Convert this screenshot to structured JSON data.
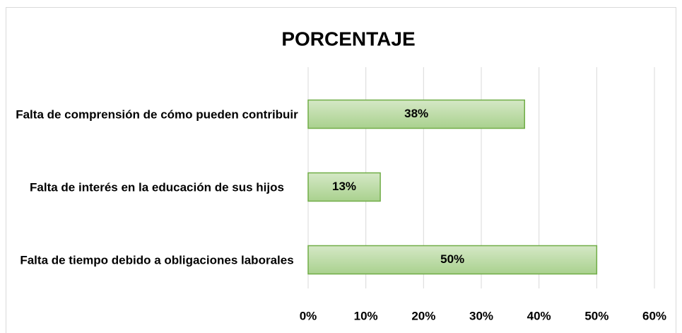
{
  "chart_data": {
    "type": "bar",
    "orientation": "horizontal",
    "title": "PORCENTAJE",
    "categories": [
      "Falta de comprensión de cómo pueden contribuir",
      "Falta de interés en la educación de sus hijos",
      "Falta de tiempo debido a obligaciones laborales"
    ],
    "values": [
      37.5,
      12.5,
      50
    ],
    "value_labels": [
      "38%",
      "13%",
      "50%"
    ],
    "color": "#a9d18e",
    "edge_color": "#70ad47",
    "xlim": [
      0,
      60
    ],
    "xticks": [
      {
        "value": 0,
        "label": "0%"
      },
      {
        "value": 10,
        "label": "10%"
      },
      {
        "value": 20,
        "label": "20%"
      },
      {
        "value": 30,
        "label": "30%"
      },
      {
        "value": 40,
        "label": "40%"
      },
      {
        "value": 50,
        "label": "50%"
      },
      {
        "value": 60,
        "label": "60%"
      }
    ],
    "grid": true
  }
}
